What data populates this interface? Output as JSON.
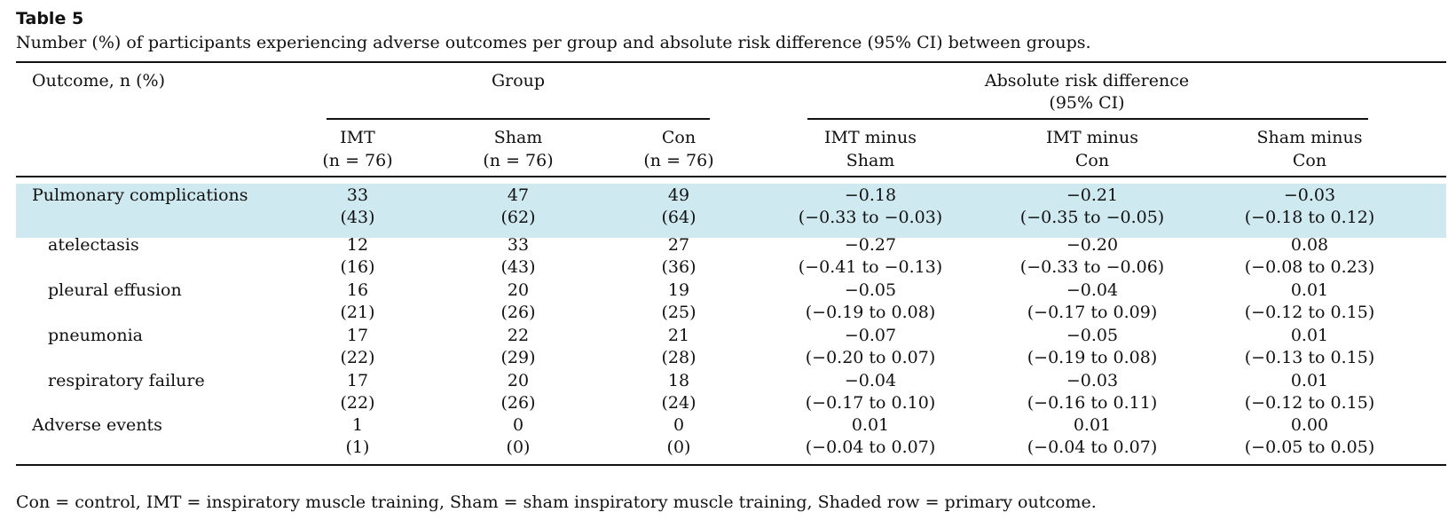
{
  "table": {
    "title": "Table 5",
    "caption": "Number (%) of participants experiencing adverse outcomes per group and absolute risk difference (95% CI) between groups.",
    "header": {
      "outcome": "Outcome, n (%)",
      "group": "Group",
      "ard_line1": "Absolute risk difference",
      "ard_line2": "(95% CI)",
      "cols": [
        {
          "l1": "IMT",
          "l2": "(n = 76)"
        },
        {
          "l1": "Sham",
          "l2": "(n = 76)"
        },
        {
          "l1": "Con",
          "l2": "(n = 76)"
        },
        {
          "l1": "IMT minus",
          "l2": "Sham"
        },
        {
          "l1": "IMT minus",
          "l2": "Con"
        },
        {
          "l1": "Sham minus",
          "l2": "Con"
        }
      ]
    },
    "rows": [
      {
        "label": "Pulmonary complications",
        "shaded": true,
        "cells": [
          [
            "33",
            "(43)"
          ],
          [
            "47",
            "(62)"
          ],
          [
            "49",
            "(64)"
          ],
          [
            "−0.18",
            "(−0.33 to −0.03)"
          ],
          [
            "−0.21",
            "(−0.35 to −0.05)"
          ],
          [
            "−0.03",
            "(−0.18 to 0.12)"
          ]
        ]
      },
      {
        "label": "atelectasis",
        "cells": [
          [
            "12",
            "(16)"
          ],
          [
            "33",
            "(43)"
          ],
          [
            "27",
            "(36)"
          ],
          [
            "−0.27",
            "(−0.41 to −0.13)"
          ],
          [
            "−0.20",
            "(−0.33 to −0.06)"
          ],
          [
            "0.08",
            "(−0.08 to 0.23)"
          ]
        ]
      },
      {
        "label": "pleural effusion",
        "cells": [
          [
            "16",
            "(21)"
          ],
          [
            "20",
            "(26)"
          ],
          [
            "19",
            "(25)"
          ],
          [
            "−0.05",
            "(−0.19 to 0.08)"
          ],
          [
            "−0.04",
            "(−0.17 to 0.09)"
          ],
          [
            "0.01",
            "(−0.12 to 0.15)"
          ]
        ]
      },
      {
        "label": "pneumonia",
        "cells": [
          [
            "17",
            "(22)"
          ],
          [
            "22",
            "(29)"
          ],
          [
            "21",
            "(28)"
          ],
          [
            "−0.07",
            "(−0.20 to 0.07)"
          ],
          [
            "−0.05",
            "(−0.19 to 0.08)"
          ],
          [
            "0.01",
            "(−0.13 to 0.15)"
          ]
        ]
      },
      {
        "label": "respiratory failure",
        "cells": [
          [
            "17",
            "(22)"
          ],
          [
            "20",
            "(26)"
          ],
          [
            "18",
            "(24)"
          ],
          [
            "−0.04",
            "(−0.17 to 0.10)"
          ],
          [
            "−0.03",
            "(−0.16 to 0.11)"
          ],
          [
            "0.01",
            "(−0.12 to 0.15)"
          ]
        ]
      },
      {
        "label": "Adverse events",
        "cells": [
          [
            "1",
            "(1)"
          ],
          [
            "0",
            "(0)"
          ],
          [
            "0",
            "(0)"
          ],
          [
            "0.01",
            "(−0.04 to 0.07)"
          ],
          [
            "0.01",
            "(−0.04 to 0.07)"
          ],
          [
            "0.00",
            "(−0.05 to 0.05)"
          ]
        ]
      }
    ],
    "footnote": "Con = control, IMT = inspiratory muscle training, Sham = sham inspiratory muscle training, Shaded row = primary outcome.",
    "shade_color": "#cfe9f0"
  }
}
